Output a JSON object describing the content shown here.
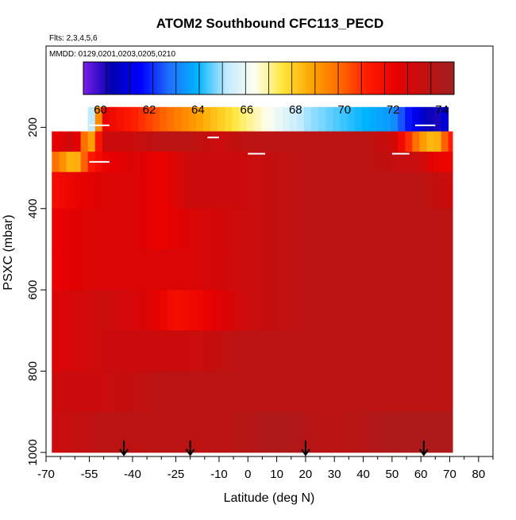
{
  "chart_data": {
    "type": "heatmap",
    "title": "ATOM2 Southbound CFC113_PECD",
    "flights_note": "Flts: 2,3,4,5,6",
    "dates_note": "MMDD: 0129,0201,0203,0205,0210",
    "xlabel": "Latitude (deg N)",
    "ylabel": "PSXC (mbar)",
    "xlim": [
      -70,
      85
    ],
    "ylim": [
      1010,
      0
    ],
    "x_ticks": [
      -70,
      -55,
      -40,
      -25,
      -10,
      0,
      10,
      20,
      30,
      40,
      50,
      60,
      70,
      80
    ],
    "x_minor_ticks": [
      -65,
      -60,
      -50,
      -45,
      -35,
      -30,
      -20,
      -15,
      -5,
      5,
      15,
      25,
      35,
      45,
      55,
      65,
      75,
      85
    ],
    "y_ticks": [
      200,
      400,
      600,
      800,
      1000
    ],
    "colorbar": {
      "min": 59.3,
      "max": 74.5,
      "ticks": [
        60,
        62,
        64,
        66,
        68,
        70,
        72,
        74
      ],
      "stops": [
        "#7a1fe6",
        "#0000b3",
        "#0000ff",
        "#1e6fff",
        "#00b4ff",
        "#bfeaff",
        "#fffff0",
        "#ffe63c",
        "#ffa500",
        "#ff6a00",
        "#ff1a00",
        "#e60000",
        "#c01010",
        "#a02020"
      ]
    },
    "data_lat_range": [
      -68,
      71
    ],
    "data_pressure_range": [
      150,
      1000
    ],
    "profile_layers": [
      {
        "p_top": 150,
        "p_bot": 210,
        "values": [
          [
            -55,
            64
          ],
          [
            -50,
            72
          ],
          [
            -40,
            71
          ],
          [
            -30,
            70
          ],
          [
            -20,
            69
          ],
          [
            -10,
            68
          ],
          [
            0,
            67
          ],
          [
            10,
            66
          ],
          [
            20,
            65
          ],
          [
            30,
            64.5
          ],
          [
            40,
            64
          ],
          [
            50,
            63.5
          ],
          [
            55,
            62
          ],
          [
            60,
            61
          ],
          [
            65,
            60
          ],
          [
            68,
            61
          ]
        ]
      },
      {
        "p_top": 210,
        "p_bot": 260,
        "values": [
          [
            -68,
            72
          ],
          [
            -60,
            73
          ],
          [
            -55,
            68
          ],
          [
            -50,
            73
          ],
          [
            -40,
            73
          ],
          [
            -30,
            73.5
          ],
          [
            -20,
            73.5
          ],
          [
            -10,
            73
          ],
          [
            0,
            73.5
          ],
          [
            20,
            73.5
          ],
          [
            40,
            73.5
          ],
          [
            50,
            73
          ],
          [
            55,
            71
          ],
          [
            60,
            69
          ],
          [
            65,
            68
          ],
          [
            70,
            71
          ]
        ]
      },
      {
        "p_top": 260,
        "p_bot": 310,
        "values": [
          [
            -68,
            70
          ],
          [
            -60,
            68
          ],
          [
            -55,
            71
          ],
          [
            -50,
            72
          ],
          [
            -40,
            72.5
          ],
          [
            -30,
            72
          ],
          [
            -20,
            73
          ],
          [
            0,
            73
          ],
          [
            20,
            73.5
          ],
          [
            40,
            73.5
          ],
          [
            60,
            73
          ],
          [
            65,
            72
          ],
          [
            70,
            72
          ]
        ]
      },
      {
        "p_top": 310,
        "p_bot": 400,
        "values": [
          [
            -68,
            71.5
          ],
          [
            -60,
            72
          ],
          [
            -50,
            72.5
          ],
          [
            -40,
            72.5
          ],
          [
            -30,
            72
          ],
          [
            -20,
            73
          ],
          [
            0,
            73
          ],
          [
            20,
            73.5
          ],
          [
            40,
            73.5
          ],
          [
            60,
            73.5
          ],
          [
            70,
            73
          ]
        ]
      },
      {
        "p_top": 400,
        "p_bot": 500,
        "values": [
          [
            -68,
            72
          ],
          [
            -55,
            72.5
          ],
          [
            -40,
            72.5
          ],
          [
            -30,
            72
          ],
          [
            -20,
            72.5
          ],
          [
            0,
            73
          ],
          [
            20,
            73.5
          ],
          [
            40,
            73.5
          ],
          [
            60,
            73.5
          ],
          [
            70,
            73.5
          ]
        ]
      },
      {
        "p_top": 500,
        "p_bot": 600,
        "values": [
          [
            -68,
            72
          ],
          [
            -55,
            72.5
          ],
          [
            -40,
            72.5
          ],
          [
            -30,
            72.5
          ],
          [
            -20,
            72.5
          ],
          [
            0,
            73
          ],
          [
            20,
            73.5
          ],
          [
            40,
            73.5
          ],
          [
            60,
            73.5
          ],
          [
            70,
            73.5
          ]
        ]
      },
      {
        "p_top": 600,
        "p_bot": 700,
        "values": [
          [
            -68,
            72.5
          ],
          [
            -50,
            73
          ],
          [
            -35,
            72.5
          ],
          [
            -25,
            71.5
          ],
          [
            -15,
            72
          ],
          [
            0,
            73
          ],
          [
            20,
            73.5
          ],
          [
            40,
            73.5
          ],
          [
            60,
            73.5
          ],
          [
            70,
            73.5
          ]
        ]
      },
      {
        "p_top": 700,
        "p_bot": 800,
        "values": [
          [
            -68,
            72.5
          ],
          [
            -50,
            73
          ],
          [
            -35,
            73
          ],
          [
            -20,
            73
          ],
          [
            0,
            73.5
          ],
          [
            20,
            73.5
          ],
          [
            40,
            73.5
          ],
          [
            60,
            73.5
          ],
          [
            70,
            73.5
          ]
        ]
      },
      {
        "p_top": 800,
        "p_bot": 900,
        "values": [
          [
            -68,
            73
          ],
          [
            -50,
            73
          ],
          [
            -30,
            73.5
          ],
          [
            -10,
            73.5
          ],
          [
            10,
            73.5
          ],
          [
            30,
            73.5
          ],
          [
            50,
            73.5
          ],
          [
            70,
            73.5
          ]
        ]
      },
      {
        "p_top": 900,
        "p_bot": 1000,
        "values": [
          [
            -68,
            73
          ],
          [
            -50,
            73.5
          ],
          [
            -30,
            73.5
          ],
          [
            -10,
            73.5
          ],
          [
            10,
            74
          ],
          [
            30,
            73.5
          ],
          [
            50,
            74
          ],
          [
            70,
            74
          ]
        ]
      }
    ],
    "flight_track_lines": [
      [
        [
          -55,
          195
        ],
        [
          -48,
          195
        ]
      ],
      [
        [
          58,
          195
        ],
        [
          65,
          195
        ]
      ],
      [
        [
          -14,
          225
        ],
        [
          -10,
          225
        ]
      ],
      [
        [
          -55,
          285
        ],
        [
          -48,
          285
        ]
      ],
      [
        [
          0,
          265
        ],
        [
          6,
          265
        ]
      ],
      [
        [
          50,
          265
        ],
        [
          56,
          265
        ]
      ]
    ],
    "arrow_markers_lat": [
      -43,
      -20,
      20,
      61
    ]
  }
}
